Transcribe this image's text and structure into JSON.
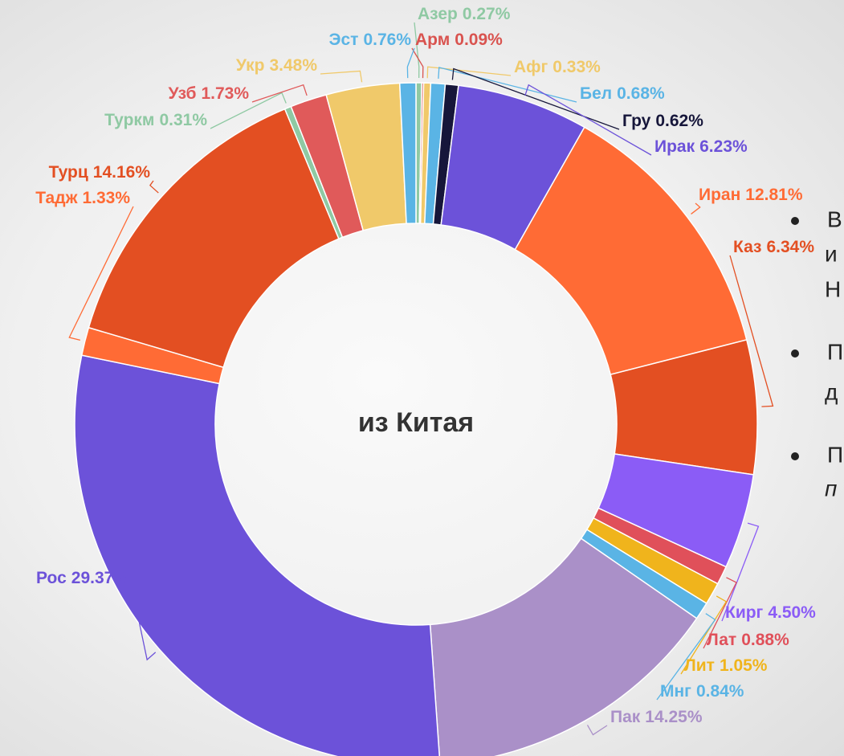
{
  "chart_data": {
    "type": "donut",
    "center_label": "из Китая",
    "categories": [
      "Азер",
      "Арм",
      "Афг",
      "Бел",
      "Гру",
      "Ирак",
      "Иран",
      "Каз",
      "Кирг",
      "Лат",
      "Лит",
      "Мнг",
      "Пак",
      "Рос",
      "Тадж",
      "Турц",
      "Туркм",
      "Узб",
      "Укр",
      "Эст"
    ],
    "values": [
      0.27,
      0.09,
      0.33,
      0.68,
      0.62,
      6.23,
      12.81,
      6.34,
      4.5,
      0.88,
      1.05,
      0.84,
      14.25,
      29.37,
      1.33,
      14.16,
      0.31,
      1.73,
      3.48,
      0.76
    ],
    "value_labels": [
      "0.27%",
      "0.09%",
      "0.33%",
      "0.68%",
      "0.62%",
      "6.23%",
      "12.81%",
      "6.34%",
      "4.50%",
      "0.88%",
      "1.05%",
      "0.84%",
      "14.25%",
      "29.37%",
      "1.33%",
      "14.16%",
      "0.31%",
      "1.73%",
      "3.48%",
      "0.76%"
    ],
    "colors": [
      "#8fc9a3",
      "#d9534f",
      "#f0c96a",
      "#5ab4e5",
      "#16163a",
      "#6c52d9",
      "#ff6b35",
      "#e34f22",
      "#8b5cf6",
      "#e0505a",
      "#f0b41c",
      "#5ab4e5",
      "#aa90c8",
      "#6c52d9",
      "#ff6b35",
      "#e34f22",
      "#8fc9a3",
      "#e05a5a",
      "#f0c96a",
      "#5ab4e5"
    ]
  },
  "text_fragments": [
    "В",
    "и",
    "Н",
    "П",
    "д",
    "П",
    "п"
  ]
}
